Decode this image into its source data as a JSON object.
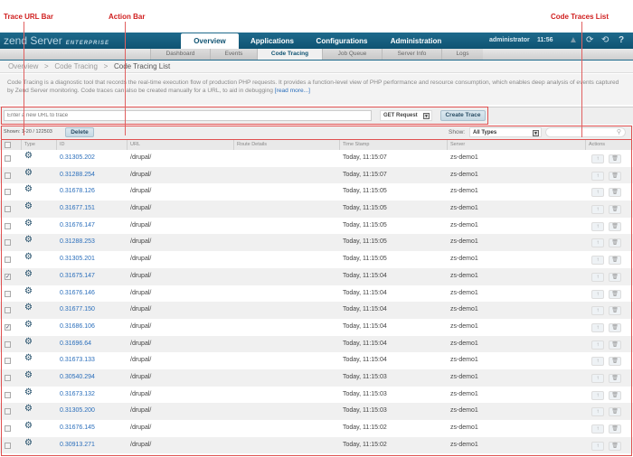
{
  "annotations": {
    "trace_url_bar": "Trace URL Bar",
    "action_bar": "Action Bar",
    "code_traces_list": "Code Traces List"
  },
  "header": {
    "logo": "zend Server",
    "edition": "ENTERPRISE",
    "tabs": [
      "Overview",
      "Applications",
      "Configurations",
      "Administration"
    ],
    "active_tab": "Overview",
    "user": "administrator",
    "time": "11:56",
    "icons": [
      "warning-icon",
      "refresh-icon",
      "logout-icon",
      "help-icon"
    ]
  },
  "subnav": {
    "tabs": [
      "Dashboard",
      "Events",
      "Code Tracing",
      "Job Queue",
      "Server Info",
      "Logs"
    ],
    "active": "Code Tracing"
  },
  "breadcrumb": {
    "items": [
      "Overview",
      "Code Tracing"
    ],
    "separator": ">",
    "current": "Code Tracing List"
  },
  "description": {
    "text": "Code Tracing is a diagnostic tool that records the real-time execution flow of production PHP requests. It provides a function-level view of PHP performance and resource consumption, which enables deep analysis of events captured by Zend Server monitoring. Code traces can also be created manually for a URL, to aid in debugging ",
    "link": "[read more...]"
  },
  "url_bar": {
    "placeholder": "Enter a new URL to trace",
    "method": "GET Request",
    "create_label": "Create Trace"
  },
  "action_bar": {
    "shown": "Shown: 1-20 / 122503",
    "delete_label": "Delete",
    "show_label": "Show:",
    "type_filter": "All Types",
    "search_placeholder": ""
  },
  "table": {
    "columns": [
      "Type",
      "ID",
      "URL",
      "Route Details",
      "Time Stamp",
      "Server",
      "Actions"
    ],
    "rows": [
      {
        "id": "0.31305.202",
        "url": "/drupal/",
        "time": "Today, 11:15:07",
        "server": "zs-demo1",
        "checked": false
      },
      {
        "id": "0.31288.254",
        "url": "/drupal/",
        "time": "Today, 11:15:07",
        "server": "zs-demo1",
        "checked": false
      },
      {
        "id": "0.31678.126",
        "url": "/drupal/",
        "time": "Today, 11:15:05",
        "server": "zs-demo1",
        "checked": false
      },
      {
        "id": "0.31677.151",
        "url": "/drupal/",
        "time": "Today, 11:15:05",
        "server": "zs-demo1",
        "checked": false
      },
      {
        "id": "0.31676.147",
        "url": "/drupal/",
        "time": "Today, 11:15:05",
        "server": "zs-demo1",
        "checked": false
      },
      {
        "id": "0.31288.253",
        "url": "/drupal/",
        "time": "Today, 11:15:05",
        "server": "zs-demo1",
        "checked": false
      },
      {
        "id": "0.31305.201",
        "url": "/drupal/",
        "time": "Today, 11:15:05",
        "server": "zs-demo1",
        "checked": false
      },
      {
        "id": "0.31675.147",
        "url": "/drupal/",
        "time": "Today, 11:15:04",
        "server": "zs-demo1",
        "checked": true
      },
      {
        "id": "0.31676.146",
        "url": "/drupal/",
        "time": "Today, 11:15:04",
        "server": "zs-demo1",
        "checked": false
      },
      {
        "id": "0.31677.150",
        "url": "/drupal/",
        "time": "Today, 11:15:04",
        "server": "zs-demo1",
        "checked": false
      },
      {
        "id": "0.31686.106",
        "url": "/drupal/",
        "time": "Today, 11:15:04",
        "server": "zs-demo1",
        "checked": true
      },
      {
        "id": "0.31696.64",
        "url": "/drupal/",
        "time": "Today, 11:15:04",
        "server": "zs-demo1",
        "checked": false
      },
      {
        "id": "0.31673.133",
        "url": "/drupal/",
        "time": "Today, 11:15:04",
        "server": "zs-demo1",
        "checked": false
      },
      {
        "id": "0.30540.294",
        "url": "/drupal/",
        "time": "Today, 11:15:03",
        "server": "zs-demo1",
        "checked": false
      },
      {
        "id": "0.31673.132",
        "url": "/drupal/",
        "time": "Today, 11:15:03",
        "server": "zs-demo1",
        "checked": false
      },
      {
        "id": "0.31305.200",
        "url": "/drupal/",
        "time": "Today, 11:15:03",
        "server": "zs-demo1",
        "checked": false
      },
      {
        "id": "0.31676.145",
        "url": "/drupal/",
        "time": "Today, 11:15:02",
        "server": "zs-demo1",
        "checked": false
      },
      {
        "id": "0.30913.271",
        "url": "/drupal/",
        "time": "Today, 11:15:02",
        "server": "zs-demo1",
        "checked": false
      }
    ]
  },
  "colors": {
    "header": "#0f5372",
    "link": "#2a6ebb",
    "annotation": "#d02020"
  }
}
